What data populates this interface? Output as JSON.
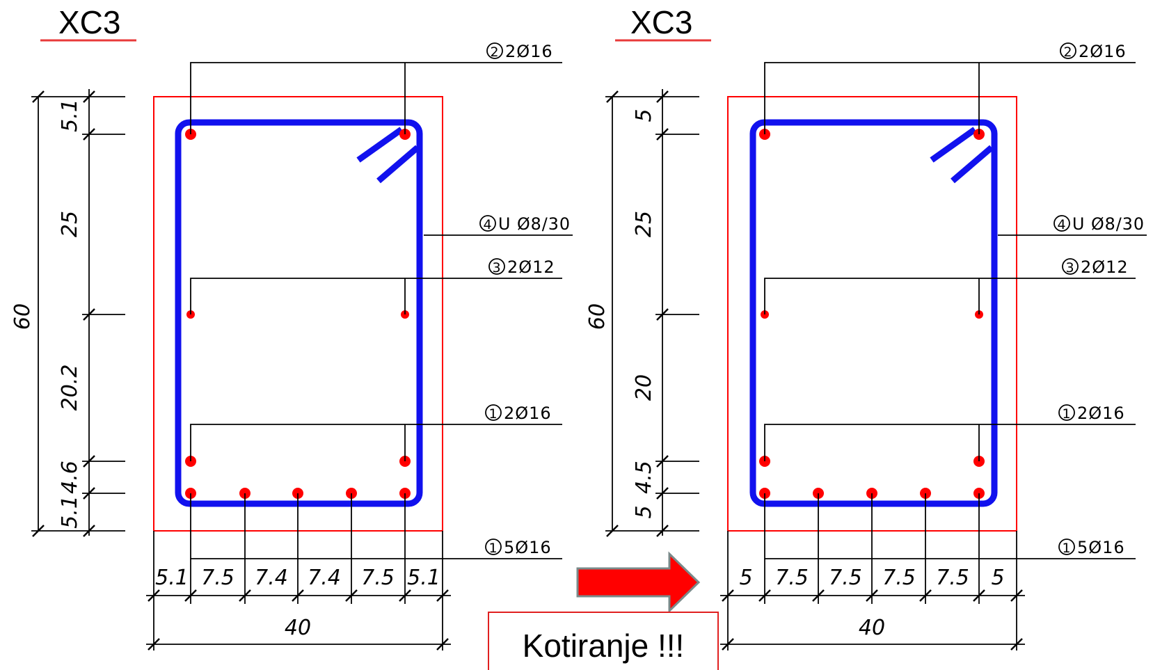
{
  "drawings": [
    {
      "title": "XC3",
      "labels": {
        "top": "2Ø16",
        "stirrup": "U Ø8/30",
        "middle": "2Ø12",
        "lower": "2Ø16",
        "bottom": "5Ø16"
      },
      "callouts": {
        "top": "2",
        "stirrup": "4",
        "middle": "3",
        "lower": "1",
        "bottom": "1"
      },
      "height_total": "60",
      "vertical_dims": [
        "5.1",
        "25",
        "20.2",
        "4.6",
        "5.1"
      ],
      "horizontal_dims": [
        "5.1",
        "7.5",
        "7.4",
        "7.4",
        "7.5",
        "5.1"
      ],
      "width_total": "40"
    },
    {
      "title": "XC3",
      "labels": {
        "top": "2Ø16",
        "stirrup": "U Ø8/30",
        "middle": "2Ø12",
        "lower": "2Ø16",
        "bottom": "5Ø16"
      },
      "callouts": {
        "top": "2",
        "stirrup": "4",
        "middle": "3",
        "lower": "1",
        "bottom": "1"
      },
      "height_total": "60",
      "vertical_dims": [
        "5",
        "25",
        "20",
        "4.5",
        "5"
      ],
      "horizontal_dims": [
        "5",
        "7.5",
        "7.5",
        "7.5",
        "7.5",
        "5"
      ],
      "width_total": "40"
    }
  ],
  "note": "Kotiranje !!!",
  "colors": {
    "concrete": "#ff0000",
    "stirrup": "#1111ee",
    "rebar": "#ff0000",
    "arrow": "#ff0000",
    "title_underline": "#e83a3a"
  },
  "icons": {
    "arrow": "right-arrow-icon"
  }
}
